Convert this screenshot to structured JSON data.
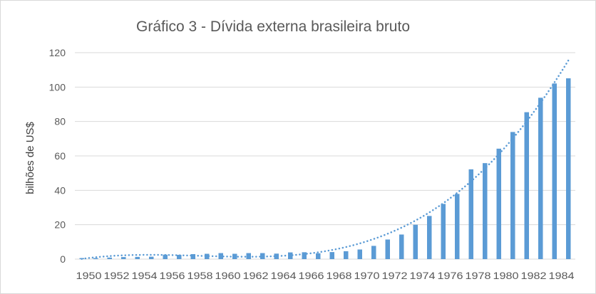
{
  "chart_data": {
    "type": "bar",
    "title": "Gráfico 3 - Dívida externa brasileira bruto",
    "xlabel": "",
    "ylabel": "bilhões de US$",
    "ylim": [
      0,
      120
    ],
    "yticks": [
      0,
      20,
      40,
      60,
      80,
      100,
      120
    ],
    "grid": true,
    "legend": "none",
    "categories": [
      "1950",
      "1951",
      "1952",
      "1953",
      "1954",
      "1955",
      "1956",
      "1957",
      "1958",
      "1959",
      "1960",
      "1961",
      "1962",
      "1963",
      "1964",
      "1965",
      "1966",
      "1967",
      "1968",
      "1969",
      "1970",
      "1971",
      "1972",
      "1973",
      "1974",
      "1975",
      "1976",
      "1977",
      "1978",
      "1979",
      "1980",
      "1981",
      "1982",
      "1983",
      "1984",
      "1985"
    ],
    "tick_labels": [
      "1950",
      "1952",
      "1954",
      "1956",
      "1958",
      "1960",
      "1962",
      "1964",
      "1966",
      "1968",
      "1970",
      "1972",
      "1974",
      "1976",
      "1978",
      "1980",
      "1982",
      "1984"
    ],
    "values": [
      0.6,
      0.6,
      0.9,
      1.2,
      1.3,
      1.4,
      2.6,
      2.5,
      2.9,
      3.1,
      3.5,
      3.1,
      3.5,
      3.5,
      3.2,
      3.9,
      4.0,
      3.4,
      4.1,
      4.6,
      5.6,
      7.7,
      11.4,
      14.3,
      20.0,
      25.1,
      32.1,
      37.9,
      52.2,
      55.8,
      64.2,
      73.9,
      85.4,
      93.8,
      102.1,
      105.1
    ],
    "trendline": {
      "type": "polynomial",
      "style": "dotted"
    },
    "colors": {
      "bar": "#5b9bd5",
      "trend": "#5b9bd5",
      "grid": "#d9d9d9",
      "text": "#595959"
    }
  }
}
